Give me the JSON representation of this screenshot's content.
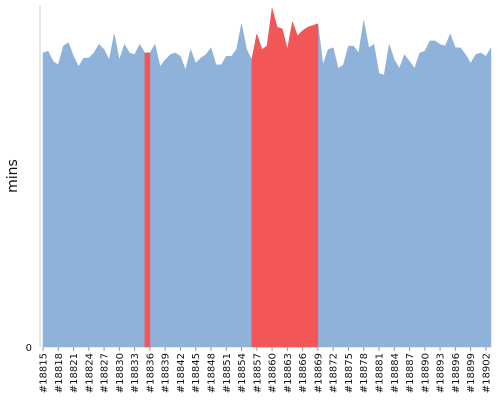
{
  "chart_data": {
    "type": "area",
    "ylabel": "mins",
    "y_ticks": [
      "0"
    ],
    "ylim": [
      0,
      100
    ],
    "x": [
      18815,
      18816,
      18817,
      18818,
      18819,
      18820,
      18821,
      18822,
      18823,
      18824,
      18825,
      18826,
      18827,
      18828,
      18829,
      18830,
      18831,
      18832,
      18833,
      18834,
      18835,
      18836,
      18837,
      18838,
      18839,
      18840,
      18841,
      18842,
      18843,
      18844,
      18845,
      18846,
      18847,
      18848,
      18849,
      18850,
      18851,
      18852,
      18853,
      18854,
      18855,
      18856,
      18857,
      18858,
      18859,
      18860,
      18861,
      18862,
      18863,
      18864,
      18865,
      18866,
      18867,
      18868,
      18869,
      18870,
      18871,
      18872,
      18873,
      18874,
      18875,
      18876,
      18877,
      18878,
      18879,
      18880,
      18881,
      18882,
      18883,
      18884,
      18885,
      18886,
      18887,
      18888,
      18889,
      18890,
      18891,
      18892,
      18893,
      18894,
      18895,
      18896,
      18897,
      18898,
      18899,
      18900,
      18901,
      18902,
      18903
    ],
    "values": [
      86,
      86.5,
      83.5,
      82.5,
      88,
      89,
      85,
      82,
      84.5,
      84.5,
      86,
      88.5,
      87,
      84,
      91.5,
      84,
      88.5,
      86,
      85.5,
      88.5,
      86,
      86,
      88.5,
      82,
      84,
      85.5,
      86,
      85,
      81,
      87,
      83,
      84.5,
      85.5,
      87.5,
      82.5,
      82.5,
      85,
      85,
      87,
      94.5,
      87,
      84,
      91.5,
      87,
      88,
      99,
      93.5,
      93,
      87,
      95,
      91,
      92.5,
      93.5,
      94,
      94.5,
      82.5,
      87,
      87.5,
      81.5,
      82.5,
      88,
      88,
      86,
      95.5,
      87.5,
      88.5,
      80,
      79.5,
      88.5,
      84,
      81.5,
      85.5,
      83.5,
      81.5,
      86,
      86.5,
      89.5,
      89.5,
      88.5,
      88,
      91.5,
      87.5,
      87.5,
      85.5,
      83,
      85.5,
      86,
      85,
      87.5
    ],
    "series": [
      {
        "color": "#8fb2da"
      },
      {
        "color": "#f25656"
      }
    ],
    "highlight_ranges": [
      [
        18835,
        18836
      ],
      [
        18856,
        18869
      ]
    ],
    "tick_labels": [
      "#18815",
      "#18818",
      "#18821",
      "#18824",
      "#18827",
      "#18830",
      "#18833",
      "#18836",
      "#18839",
      "#18842",
      "#18845",
      "#18848",
      "#18851",
      "#18854",
      "#18857",
      "#18860",
      "#18863",
      "#18866",
      "#18869",
      "#18872",
      "#18875",
      "#18878",
      "#18881",
      "#18884",
      "#18887",
      "#18890",
      "#18893",
      "#18896",
      "#18899",
      "#18902"
    ],
    "grid": false,
    "legend": "none"
  }
}
